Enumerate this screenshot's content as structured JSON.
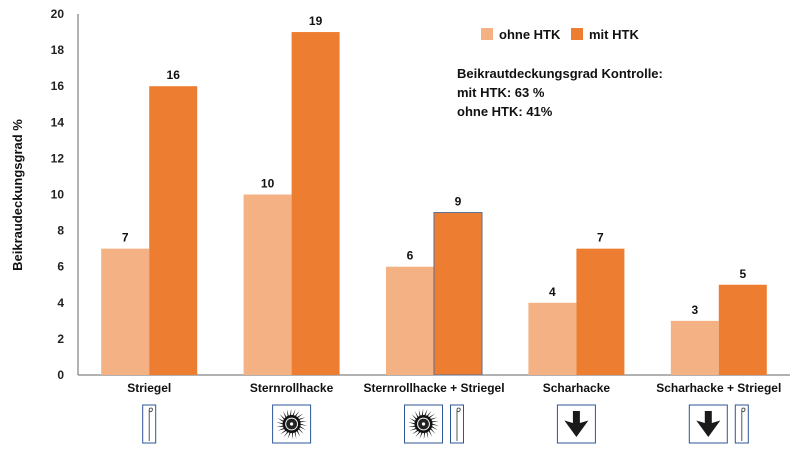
{
  "chart_data": {
    "type": "bar",
    "categories": [
      "Striegel",
      "Sternrollhacke",
      "Sternrollhacke + Striegel",
      "Scharhacke",
      "Scharhacke + Striegel"
    ],
    "series": [
      {
        "name": "ohne HTK",
        "values": [
          7,
          10,
          6,
          4,
          3
        ],
        "color": "#F4B183"
      },
      {
        "name": "mit HTK",
        "values": [
          16,
          19,
          9,
          7,
          5
        ],
        "color": "#ED7D31"
      }
    ],
    "data_labels": [
      [
        "7",
        "10",
        "6",
        "4",
        "3"
      ],
      [
        "16",
        "19",
        "9",
        "7",
        "5"
      ]
    ],
    "ylabel": "Beikraudeckungsgrad %",
    "ylim": [
      0,
      20
    ],
    "yticks": [
      0,
      2,
      4,
      6,
      8,
      10,
      12,
      14,
      16,
      18,
      20
    ],
    "grid": false,
    "legend": {
      "placement": "top-right",
      "items": [
        "ohne HTK",
        "mit HTK"
      ]
    },
    "annotation": [
      "Beikrautdeckungsgrad Kontrolle:",
      "mit HTK: 63 %",
      "ohne HTK: 41%"
    ],
    "category_icons": [
      [
        "tine-icon"
      ],
      [
        "star-wheel-icon"
      ],
      [
        "star-wheel-icon",
        "tine-icon"
      ],
      [
        "sweep-blade-icon"
      ],
      [
        "sweep-blade-icon",
        "tine-icon"
      ]
    ]
  }
}
